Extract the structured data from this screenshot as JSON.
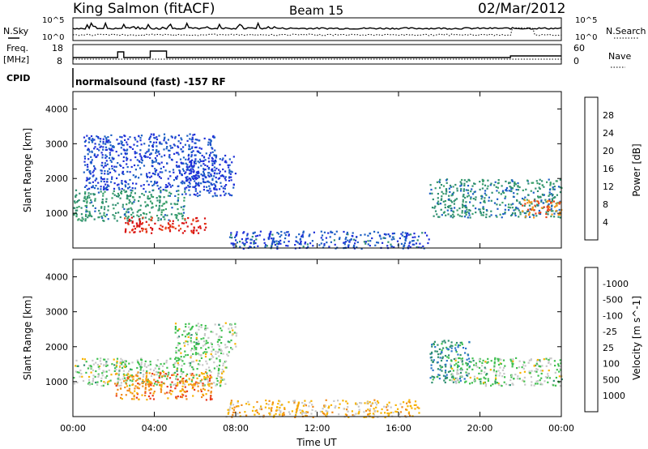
{
  "header": {
    "station": "King Salmon (fitACF)",
    "beam": "Beam 15",
    "date": "02/Mar/2012"
  },
  "top_panels": {
    "nsky_label": "N.Sky",
    "nsky_ticks": [
      "10^5",
      "10^0"
    ],
    "nsearch_label": "N.Search",
    "nsearch_ticks": [
      "10^5",
      "10^0"
    ],
    "freq_label": "Freq.",
    "freq_unit": "[MHz]",
    "freq_ticks": [
      "18",
      "8"
    ],
    "nave_label": "Nave",
    "nave_ticks": [
      "60",
      "0"
    ],
    "cpid_label": "CPID",
    "cpid_text": "normalsound (fast) -157 RF"
  },
  "chart_data": [
    {
      "type": "heatmap",
      "panel": "power",
      "ylabel": "Slant Range [km]",
      "xlabel": "",
      "ylim": [
        0,
        4500
      ],
      "yticks": [
        1000,
        2000,
        3000,
        4000
      ],
      "xlim_hours": [
        0,
        24
      ],
      "colorbar": {
        "label": "Power [dB]",
        "ticks": [
          "4",
          "8",
          "12",
          "16",
          "20",
          "24",
          "28"
        ],
        "colors": [
          "#1f30d8",
          "#1c5fc4",
          "#2f8f70",
          "#3aa06a",
          "#f7c300",
          "#f0961a",
          "#e8421a",
          "#d81010"
        ]
      },
      "regions": [
        {
          "t0": 0.0,
          "t1": 5.5,
          "r0": 800,
          "r1": 1700,
          "level": 0.35
        },
        {
          "t0": 0.5,
          "t1": 7.0,
          "r0": 1700,
          "r1": 3300,
          "level": 0.12
        },
        {
          "t0": 2.5,
          "t1": 6.5,
          "r0": 450,
          "r1": 900,
          "level": 0.9
        },
        {
          "t0": 5.5,
          "t1": 8.0,
          "r0": 1500,
          "r1": 2700,
          "level": 0.1
        },
        {
          "t0": 7.5,
          "t1": 17.5,
          "r0": 0,
          "r1": 500,
          "level": 0.15
        },
        {
          "t0": 17.5,
          "t1": 24.0,
          "r0": 900,
          "r1": 2000,
          "level": 0.3
        },
        {
          "t0": 22.0,
          "t1": 24.0,
          "r0": 900,
          "r1": 1400,
          "level": 0.75
        }
      ]
    },
    {
      "type": "heatmap",
      "panel": "velocity",
      "ylabel": "Slant Range [km]",
      "xlabel": "Time UT",
      "ylim": [
        0,
        4500
      ],
      "yticks": [
        1000,
        2000,
        3000,
        4000
      ],
      "xticks": [
        "00:00",
        "04:00",
        "08:00",
        "12:00",
        "16:00",
        "20:00",
        "00:00"
      ],
      "colorbar": {
        "label": "Velocity [m s^-1]",
        "ticks": [
          "1000",
          "500",
          "100",
          "25",
          "-25",
          "-100",
          "-500",
          "-1000"
        ],
        "colors": [
          "#1f30d8",
          "#2a76c8",
          "#2f8f70",
          "#3fc050",
          "#c8c8c8",
          "#f7b300",
          "#f08a1a",
          "#e83a1a",
          "#d81010"
        ]
      },
      "regions": [
        {
          "t0": 0.0,
          "t1": 7.5,
          "r0": 900,
          "r1": 1700,
          "level": 0.45
        },
        {
          "t0": 2.0,
          "t1": 6.8,
          "r0": 500,
          "r1": 1300,
          "level": 0.72
        },
        {
          "t0": 5.0,
          "t1": 8.0,
          "r0": 1700,
          "r1": 2700,
          "level": 0.45
        },
        {
          "t0": 7.5,
          "t1": 17.0,
          "r0": 0,
          "r1": 500,
          "level": 0.6
        },
        {
          "t0": 17.5,
          "t1": 19.5,
          "r0": 1000,
          "r1": 2200,
          "level": 0.25
        },
        {
          "t0": 18.5,
          "t1": 24.0,
          "r0": 900,
          "r1": 1700,
          "level": 0.45
        }
      ]
    }
  ]
}
